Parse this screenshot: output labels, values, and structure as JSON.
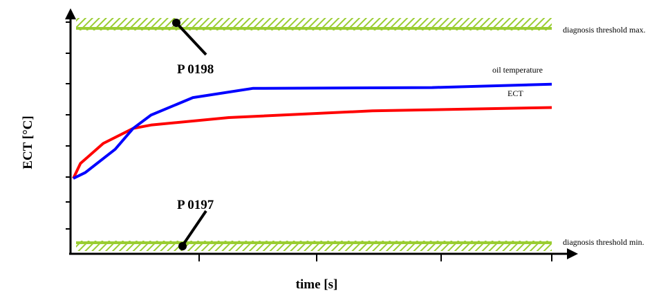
{
  "chart_data": {
    "type": "line",
    "title": "",
    "xlabel": "time [s]",
    "ylabel": "ECT [°C]",
    "tick_labels_shown": false,
    "x_ticks_count": 4,
    "y_ticks_count": 9,
    "series": [
      {
        "name": "oil temperature",
        "color": "#0000ff",
        "points": [
          [
            0,
            20
          ],
          [
            10,
            27
          ],
          [
            35,
            55
          ],
          [
            50,
            80
          ],
          [
            65,
            96
          ],
          [
            100,
            117
          ],
          [
            150,
            128
          ],
          [
            300,
            129
          ],
          [
            400,
            133
          ]
        ]
      },
      {
        "name": "ECT",
        "color": "#ff0000",
        "points": [
          [
            0,
            20
          ],
          [
            6,
            38
          ],
          [
            25,
            62
          ],
          [
            50,
            80
          ],
          [
            65,
            84
          ],
          [
            130,
            93
          ],
          [
            250,
            101
          ],
          [
            400,
            105
          ]
        ]
      }
    ],
    "thresholds": [
      {
        "name": "diagnosis threshold max.",
        "value": 200,
        "color": "#9acd32",
        "pattern": "hatched"
      },
      {
        "name": "diagnosis threshold min.",
        "value": -20,
        "color": "#9acd32",
        "pattern": "hatched"
      }
    ],
    "annotations": [
      {
        "text": "P 0198",
        "target": "diagnosis threshold max."
      },
      {
        "text": "P 0197",
        "target": "diagnosis threshold min."
      }
    ]
  }
}
